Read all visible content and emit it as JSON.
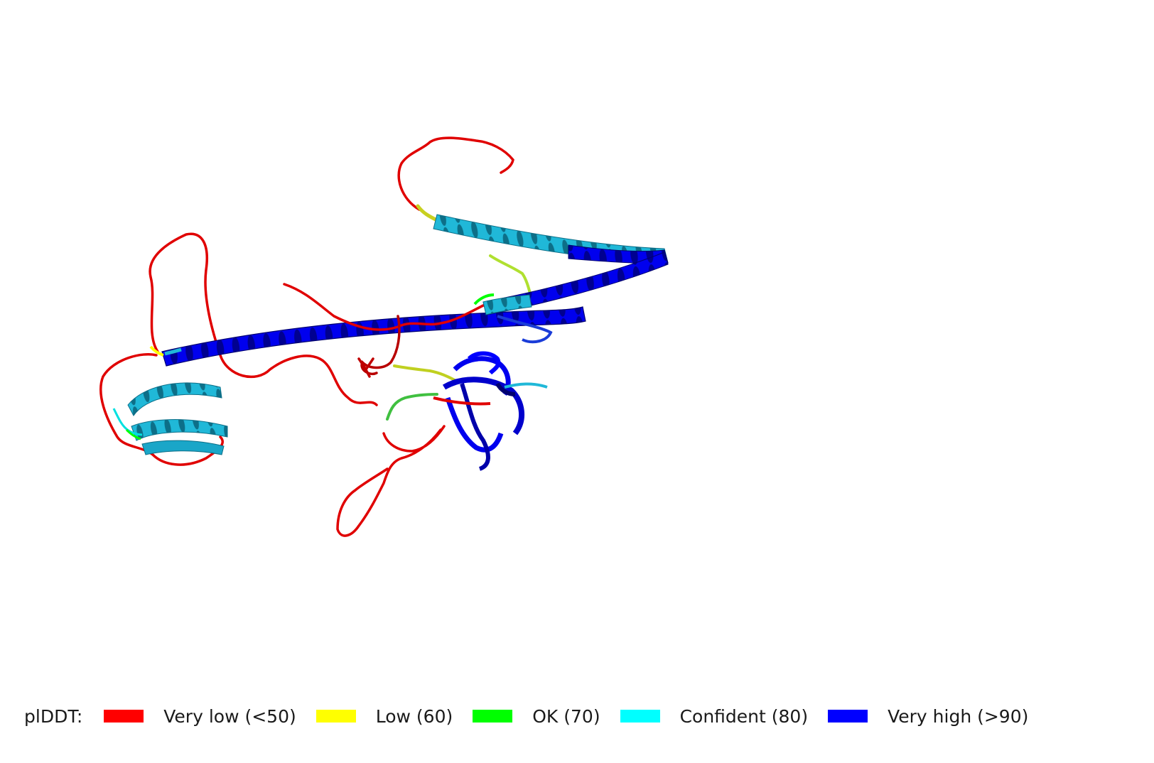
{
  "legend": {
    "title": "plDDT:",
    "items": [
      {
        "label": "Very low (<50)",
        "color": "#ff0000",
        "name": "very-low"
      },
      {
        "label": "Low (60)",
        "color": "#ffff00",
        "name": "low"
      },
      {
        "label": "OK (70)",
        "color": "#00ff00",
        "name": "ok"
      },
      {
        "label": "Confident (80)",
        "color": "#00ffff",
        "name": "confident"
      },
      {
        "label": "Very high (>90)",
        "color": "#0000ff",
        "name": "very-high"
      }
    ]
  },
  "colors": {
    "very_low": "#ff0000",
    "very_low_shade": "#8b0000",
    "low": "#ffff00",
    "ok": "#00ff00",
    "confident": "#00ffff",
    "confident_shade": "#1aa6c8",
    "very_high": "#0000ff",
    "very_high_shade": "#000080"
  }
}
